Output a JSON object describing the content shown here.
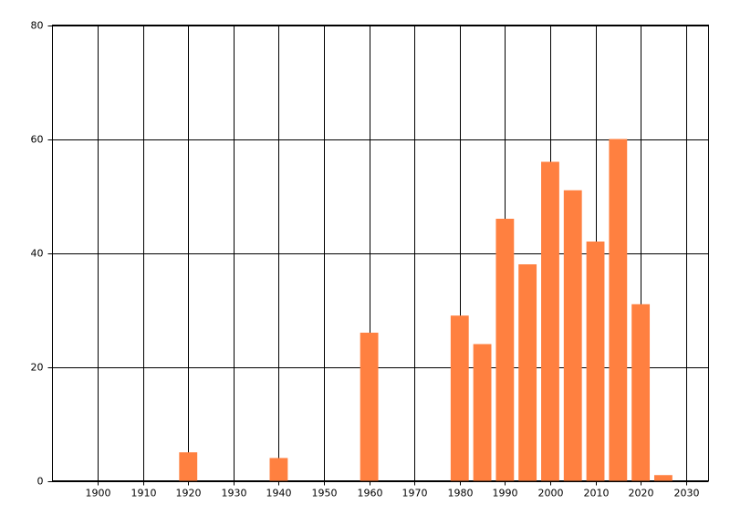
{
  "chart_data": {
    "type": "bar",
    "x": [
      1920,
      1940,
      1960,
      1980,
      1985,
      1990,
      1995,
      2000,
      2005,
      2010,
      2015,
      2020,
      2025
    ],
    "values": [
      5,
      4,
      26,
      29,
      24,
      46,
      38,
      56,
      51,
      42,
      60,
      31,
      1
    ],
    "color": "#ff8040",
    "xlim": [
      1890,
      2035
    ],
    "xticks": [
      1900,
      1910,
      1920,
      1930,
      1940,
      1950,
      1960,
      1970,
      1980,
      1990,
      2000,
      2010,
      2020,
      2030
    ],
    "ylim": [
      0,
      80
    ],
    "yticks": [
      0,
      20,
      40,
      60,
      80
    ],
    "grid": true
  }
}
